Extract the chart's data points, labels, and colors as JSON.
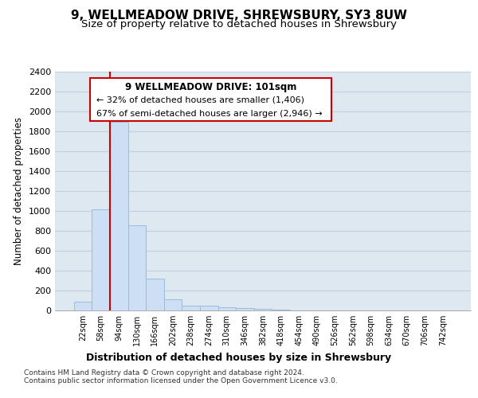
{
  "title": "9, WELLMEADOW DRIVE, SHREWSBURY, SY3 8UW",
  "subtitle": "Size of property relative to detached houses in Shrewsbury",
  "xlabel": "Distribution of detached houses by size in Shrewsbury",
  "ylabel": "Number of detached properties",
  "categories": [
    "22sqm",
    "58sqm",
    "94sqm",
    "130sqm",
    "166sqm",
    "202sqm",
    "238sqm",
    "274sqm",
    "310sqm",
    "346sqm",
    "382sqm",
    "418sqm",
    "454sqm",
    "490sqm",
    "526sqm",
    "562sqm",
    "598sqm",
    "634sqm",
    "670sqm",
    "706sqm",
    "742sqm"
  ],
  "values": [
    90,
    1020,
    1900,
    860,
    320,
    115,
    50,
    45,
    30,
    25,
    15,
    5,
    2,
    0,
    0,
    0,
    0,
    0,
    0,
    0,
    0
  ],
  "bar_color": "#ccdff5",
  "bar_edge_color": "#9bbcd8",
  "property_line_color": "#cc0000",
  "annotation_title": "9 WELLMEADOW DRIVE: 101sqm",
  "annotation_line1": "← 32% of detached houses are smaller (1,406)",
  "annotation_line2": "67% of semi-detached houses are larger (2,946) →",
  "annotation_box_color": "#cc0000",
  "ylim": [
    0,
    2400
  ],
  "yticks": [
    0,
    200,
    400,
    600,
    800,
    1000,
    1200,
    1400,
    1600,
    1800,
    2000,
    2200,
    2400
  ],
  "grid_color": "#c0d0e0",
  "bg_color": "#dde8f0",
  "footnote1": "Contains HM Land Registry data © Crown copyright and database right 2024.",
  "footnote2": "Contains public sector information licensed under the Open Government Licence v3.0.",
  "title_fontsize": 11,
  "subtitle_fontsize": 9.5,
  "xlabel_fontsize": 9,
  "ylabel_fontsize": 8.5
}
